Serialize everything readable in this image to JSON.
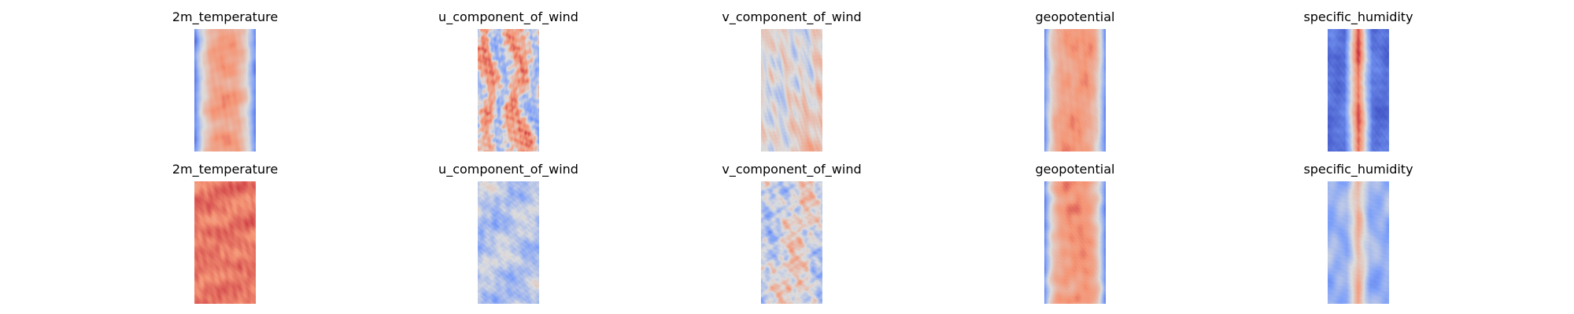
{
  "chart_data": [
    {
      "type": "heatmap",
      "title": "2m_temperature",
      "colormap": "coolwarm",
      "row": 1,
      "column": 1,
      "axes": "off",
      "pattern": "warm-band"
    },
    {
      "type": "heatmap",
      "title": "u_component_of_wind",
      "colormap": "coolwarm",
      "row": 1,
      "column": 2,
      "axes": "off",
      "pattern": "streaks"
    },
    {
      "type": "heatmap",
      "title": "v_component_of_wind",
      "colormap": "coolwarm",
      "row": 1,
      "column": 3,
      "axes": "off",
      "pattern": "noise"
    },
    {
      "type": "heatmap",
      "title": "geopotential",
      "colormap": "coolwarm",
      "row": 1,
      "column": 4,
      "axes": "off",
      "pattern": "warm-band-wide"
    },
    {
      "type": "heatmap",
      "title": "specific_humidity",
      "colormap": "coolwarm",
      "row": 1,
      "column": 5,
      "axes": "off",
      "pattern": "cold-edges-spine"
    },
    {
      "type": "heatmap",
      "title": "2m_temperature",
      "colormap": "coolwarm",
      "row": 2,
      "column": 1,
      "axes": "off",
      "pattern": "warm-fill"
    },
    {
      "type": "heatmap",
      "title": "u_component_of_wind",
      "colormap": "coolwarm",
      "row": 2,
      "column": 2,
      "axes": "off",
      "pattern": "cool-noise"
    },
    {
      "type": "heatmap",
      "title": "v_component_of_wind",
      "colormap": "coolwarm",
      "row": 2,
      "column": 3,
      "axes": "off",
      "pattern": "noise-strong"
    },
    {
      "type": "heatmap",
      "title": "geopotential",
      "colormap": "coolwarm",
      "row": 2,
      "column": 4,
      "axes": "off",
      "pattern": "warm-band-wide"
    },
    {
      "type": "heatmap",
      "title": "specific_humidity",
      "colormap": "coolwarm",
      "row": 2,
      "column": 5,
      "axes": "off",
      "pattern": "cool-field-spine"
    }
  ]
}
